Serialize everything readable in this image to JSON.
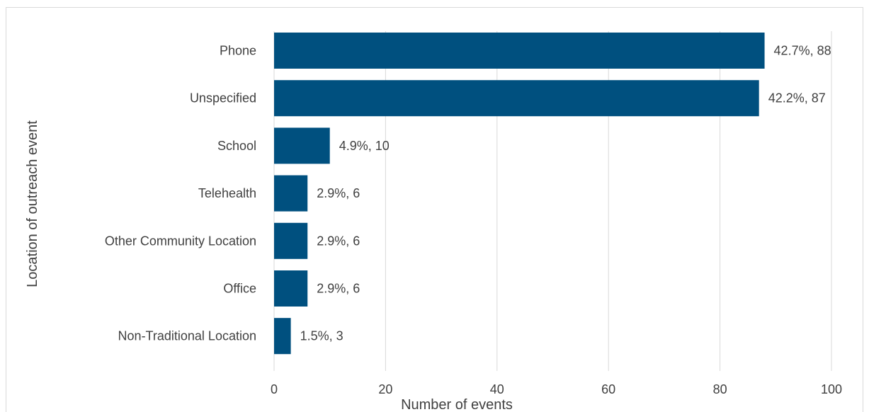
{
  "chart_data": {
    "type": "bar",
    "orientation": "horizontal",
    "title": "",
    "xlabel": "Number of events",
    "ylabel": "Location of outreach event",
    "xlim": [
      0,
      100
    ],
    "xticks": [
      "0",
      "20",
      "40",
      "60",
      "80",
      "100"
    ],
    "grid": true,
    "legend": "none",
    "bar_color": "#00507f",
    "categories": [
      "Phone",
      "Unspecified",
      "School",
      "Telehealth",
      "Other Community Location",
      "Office",
      "Non-Traditional Location"
    ],
    "values": [
      88,
      87,
      10,
      6,
      6,
      6,
      3
    ],
    "data_labels": [
      "42.7%, 88",
      "42.2%, 87",
      "4.9%, 10",
      "2.9%, 6",
      "2.9%, 6",
      "2.9%, 6",
      "1.5%, 3"
    ]
  }
}
